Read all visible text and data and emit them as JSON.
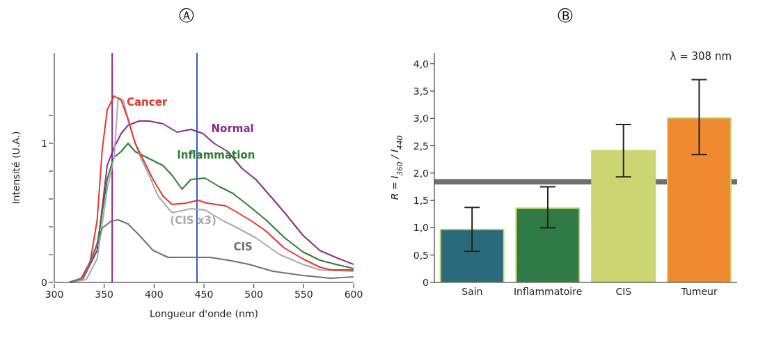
{
  "chart_data": [
    {
      "type": "line",
      "title": "Ⓐ",
      "xlabel": "Longueur d'onde (nm)",
      "ylabel": "Intensité (U.A.)",
      "xlim": [
        300,
        600
      ],
      "xticks": [
        300,
        350,
        400,
        450,
        500,
        550,
        600
      ],
      "ylim": [
        0,
        1.65
      ],
      "yticks": [
        {
          "value": 0,
          "label": "0"
        },
        {
          "value": 0.2,
          "label": null
        },
        {
          "value": 0.4,
          "label": null
        },
        {
          "value": 0.6,
          "label": null
        },
        {
          "value": 0.8,
          "label": null
        },
        {
          "value": 1,
          "label": "1"
        },
        {
          "value": 1.2,
          "label": null
        }
      ],
      "grid": false,
      "legend": false,
      "marker": "none",
      "line_style": "solid",
      "ref_lines": [
        {
          "axis": "x",
          "value": 358,
          "color": "#8b2a8b"
        },
        {
          "axis": "x",
          "value": 443,
          "color": "#2f5fc8"
        }
      ],
      "series": [
        {
          "name": "Normal",
          "color": "#8b2a8b",
          "x": [
            315,
            329,
            343,
            353,
            360,
            367,
            374,
            385,
            395,
            409,
            423,
            437,
            449,
            460,
            474,
            488,
            502,
            519,
            531,
            549,
            566,
            582,
            600
          ],
          "values": [
            0,
            0.03,
            0.23,
            0.84,
            0.97,
            1.07,
            1.13,
            1.16,
            1.16,
            1.14,
            1.08,
            1.1,
            1.07,
            1.0,
            0.94,
            0.82,
            0.74,
            0.6,
            0.5,
            0.34,
            0.23,
            0.18,
            0.13
          ]
        },
        {
          "name": "Inflammation",
          "color": "#2e7d32",
          "x": [
            315,
            329,
            343,
            353,
            357,
            360,
            367,
            374,
            381,
            395,
            409,
            418,
            428,
            437,
            451,
            465,
            479,
            495,
            512,
            531,
            549,
            566,
            582,
            600
          ],
          "values": [
            0,
            0.03,
            0.27,
            0.74,
            0.84,
            0.9,
            0.94,
            1.0,
            0.94,
            0.89,
            0.84,
            0.77,
            0.67,
            0.74,
            0.75,
            0.69,
            0.64,
            0.55,
            0.45,
            0.32,
            0.22,
            0.16,
            0.13,
            0.1
          ]
        },
        {
          "name": "(CIS x3)",
          "color": "#a9a9ad",
          "x": [
            315,
            332,
            343,
            353,
            360,
            364,
            369,
            376,
            385,
            395,
            404,
            418,
            437,
            451,
            470,
            484,
            502,
            526,
            549,
            566,
            600
          ],
          "values": [
            0,
            0.02,
            0.17,
            0.67,
            0.9,
            1.33,
            1.31,
            1.12,
            0.92,
            0.77,
            0.62,
            0.5,
            0.53,
            0.52,
            0.44,
            0.39,
            0.32,
            0.2,
            0.13,
            0.09,
            0.08
          ]
        },
        {
          "name": "Cancer",
          "color": "#e8352a",
          "x": [
            315,
            327,
            336,
            343,
            348,
            353,
            360,
            367,
            374,
            381,
            390,
            399,
            409,
            418,
            432,
            444,
            453,
            472,
            484,
            498,
            512,
            530,
            549,
            566,
            577,
            600
          ],
          "values": [
            0,
            0.03,
            0.15,
            0.45,
            0.95,
            1.24,
            1.34,
            1.31,
            1.17,
            1.0,
            0.87,
            0.74,
            0.62,
            0.56,
            0.57,
            0.59,
            0.57,
            0.55,
            0.5,
            0.44,
            0.37,
            0.25,
            0.17,
            0.11,
            0.09,
            0.09
          ]
        },
        {
          "name": "CIS",
          "color": "#707078",
          "x": [
            315,
            329,
            339,
            348,
            357,
            364,
            374,
            385,
            399,
            414,
            437,
            456,
            474,
            495,
            519,
            549,
            577,
            600
          ],
          "values": [
            0,
            0.03,
            0.2,
            0.39,
            0.44,
            0.45,
            0.42,
            0.34,
            0.23,
            0.18,
            0.18,
            0.18,
            0.16,
            0.13,
            0.08,
            0.05,
            0.03,
            0.04
          ]
        }
      ]
    },
    {
      "type": "bar",
      "title": "Ⓑ",
      "ylabel": "R = I$_{360}$ / I$_{440}$",
      "categories": [
        "Sain",
        "Inflammatoire",
        "CIS",
        "Tumeur"
      ],
      "values": [
        0.97,
        1.36,
        2.41,
        3.01
      ],
      "colors": [
        "#2a6a7a",
        "#2f7a45",
        "#cbd672",
        "#f08a30"
      ],
      "errors": [
        [
          0.57,
          1.37
        ],
        [
          1.0,
          1.75
        ],
        [
          1.93,
          2.89
        ],
        [
          2.34,
          3.71
        ]
      ],
      "ylim": [
        0,
        4.2
      ],
      "yticks": [
        0,
        {
          "value": 0.5,
          "label": "0,5"
        },
        {
          "value": 1,
          "label": "1,0"
        },
        {
          "value": 1.5,
          "label": "1,5"
        },
        {
          "value": 2,
          "label": "2,0"
        },
        {
          "value": 2.5,
          "label": "2,5"
        },
        {
          "value": 3,
          "label": "3,0"
        },
        {
          "value": 3.5,
          "label": "3,5"
        },
        {
          "value": 4,
          "label": "4,0"
        }
      ],
      "grid": false,
      "legend": false,
      "bands": [
        {
          "axis": "y",
          "from": 1.79,
          "to": 1.89,
          "color": "#555555"
        }
      ],
      "annotations": [
        "λ = 308 nm"
      ]
    }
  ]
}
